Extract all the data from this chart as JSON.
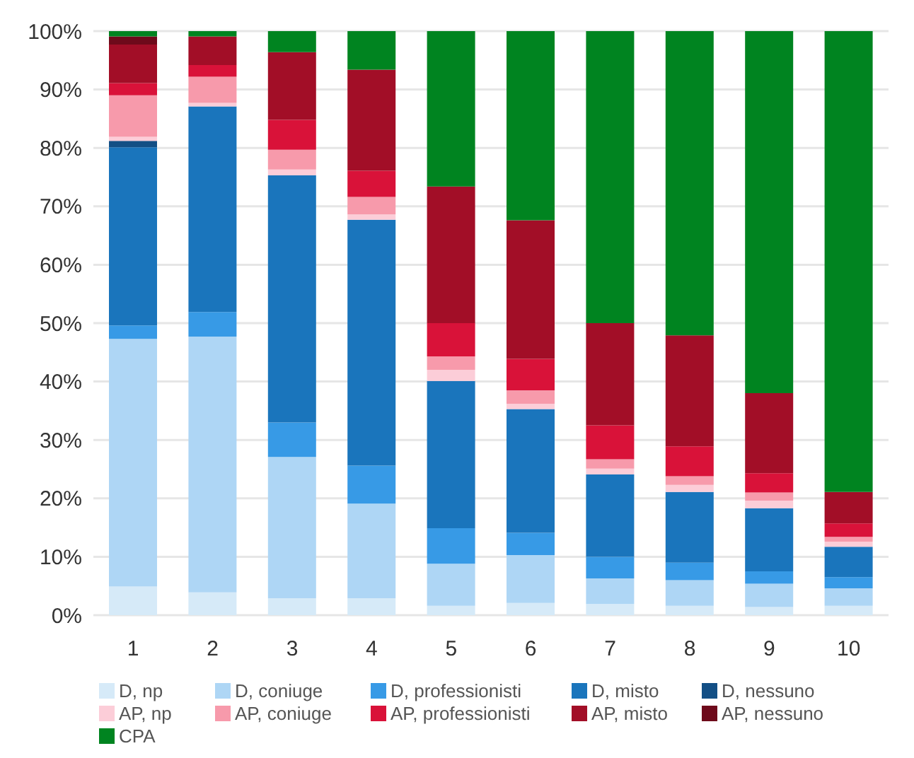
{
  "chart_data": {
    "type": "bar",
    "stacked": true,
    "categories": [
      "1",
      "2",
      "3",
      "4",
      "5",
      "6",
      "7",
      "8",
      "9",
      "10"
    ],
    "ylim": [
      0,
      100
    ],
    "yticks": [
      {
        "value": 0,
        "label": "0%"
      },
      {
        "value": 10,
        "label": "10%"
      },
      {
        "value": 20,
        "label": "20%"
      },
      {
        "value": 30,
        "label": "30%"
      },
      {
        "value": 40,
        "label": "40%"
      },
      {
        "value": 50,
        "label": "50%"
      },
      {
        "value": 60,
        "label": "60%"
      },
      {
        "value": 70,
        "label": "70%"
      },
      {
        "value": 80,
        "label": "80%"
      },
      {
        "value": 90,
        "label": "90%"
      },
      {
        "value": 100,
        "label": "100%"
      }
    ],
    "grid": "y",
    "legend": "bottom",
    "series": [
      {
        "name": "D, np",
        "color": "#d6eaf8",
        "values": [
          4.9,
          3.9,
          2.9,
          2.9,
          1.6,
          2.1,
          1.9,
          1.6,
          1.4,
          1.6
        ]
      },
      {
        "name": "D, coniuge",
        "color": "#aed6f5",
        "values": [
          42.4,
          43.8,
          24.2,
          16.2,
          7.2,
          8.2,
          4.4,
          4.4,
          4.0,
          3.0
        ]
      },
      {
        "name": "D, professionisti",
        "color": "#379ae6",
        "values": [
          2.3,
          4.2,
          5.9,
          6.5,
          6.1,
          3.8,
          3.7,
          3.0,
          2.1,
          1.9
        ]
      },
      {
        "name": "D, misto",
        "color": "#1a75bc",
        "values": [
          30.5,
          35.2,
          42.3,
          42.1,
          25.2,
          21.2,
          14.1,
          12.1,
          10.8,
          5.2
        ]
      },
      {
        "name": "D, nessuno",
        "color": "#134f85",
        "values": [
          1.1,
          0,
          0,
          0,
          0,
          0,
          0,
          0,
          0,
          0
        ]
      },
      {
        "name": "AP, np",
        "color": "#fccdd8",
        "values": [
          0.7,
          0.6,
          1.0,
          0.9,
          1.9,
          0.9,
          1.0,
          1.2,
          1.3,
          0.9
        ]
      },
      {
        "name": "AP, coniuge",
        "color": "#f79aab",
        "values": [
          7.1,
          4.5,
          3.4,
          3.0,
          2.3,
          2.3,
          1.6,
          1.5,
          1.4,
          0.8
        ]
      },
      {
        "name": "AP, professionisti",
        "color": "#d91239",
        "values": [
          2.1,
          2.0,
          5.1,
          4.5,
          5.7,
          5.4,
          5.8,
          5.1,
          3.3,
          2.3
        ]
      },
      {
        "name": "AP, misto",
        "color": "#a20e27",
        "values": [
          6.6,
          4.9,
          11.6,
          17.3,
          23.4,
          23.7,
          17.5,
          19.0,
          13.7,
          5.4
        ]
      },
      {
        "name": "AP, nessuno",
        "color": "#6e0a1b",
        "values": [
          1.4,
          0,
          0,
          0,
          0,
          0,
          0,
          0,
          0,
          0
        ]
      },
      {
        "name": "CPA",
        "color": "#008420",
        "values": [
          0.9,
          0.9,
          3.6,
          6.6,
          26.6,
          32.4,
          50.0,
          52.1,
          62.0,
          78.9
        ]
      }
    ]
  }
}
